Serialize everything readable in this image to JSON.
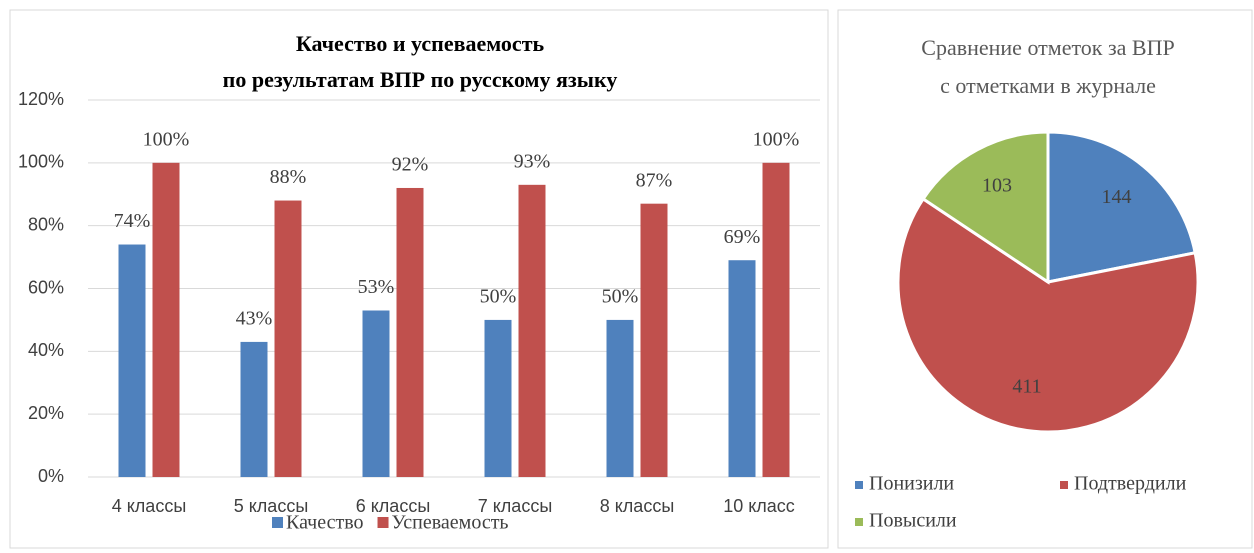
{
  "chart_data": [
    {
      "type": "bar",
      "title": [
        "Качество и успеваемость",
        "по результатам ВПР по русскому языку"
      ],
      "categories": [
        "4 классы",
        "5 классы",
        "6 классы",
        "7 классы",
        "8 классы",
        "10 класс"
      ],
      "series": [
        {
          "name": "Качество",
          "color": "#4f81bd",
          "values": [
            74,
            43,
            53,
            50,
            50,
            69
          ],
          "value_labels": [
            "74%",
            "43%",
            "53%",
            "50%",
            "50%",
            "69%"
          ]
        },
        {
          "name": "Успеваемость",
          "color": "#c0504d",
          "values": [
            100,
            88,
            92,
            93,
            87,
            100
          ],
          "value_labels": [
            "100%",
            "88%",
            "92%",
            "93%",
            "87%",
            "100%"
          ]
        }
      ],
      "ylim": [
        0,
        120
      ],
      "yticks": [
        {
          "value": 0,
          "label": "0%"
        },
        {
          "value": 20,
          "label": "20%"
        },
        {
          "value": 40,
          "label": "40%"
        },
        {
          "value": 60,
          "label": "60%"
        },
        {
          "value": 80,
          "label": "80%"
        },
        {
          "value": 100,
          "label": "100%"
        },
        {
          "value": 120,
          "label": "120%"
        }
      ],
      "grid": true,
      "legend": "bottom"
    },
    {
      "type": "pie",
      "title": [
        "Сравнение отметок за ВПР",
        "с отметками в журнале"
      ],
      "categories": [
        "Понизили",
        "Подтвердили",
        "Повысили"
      ],
      "values": [
        144,
        411,
        103
      ],
      "colors": [
        "#4f81bd",
        "#c0504d",
        "#9bbb59"
      ],
      "legend": "bottom"
    }
  ]
}
